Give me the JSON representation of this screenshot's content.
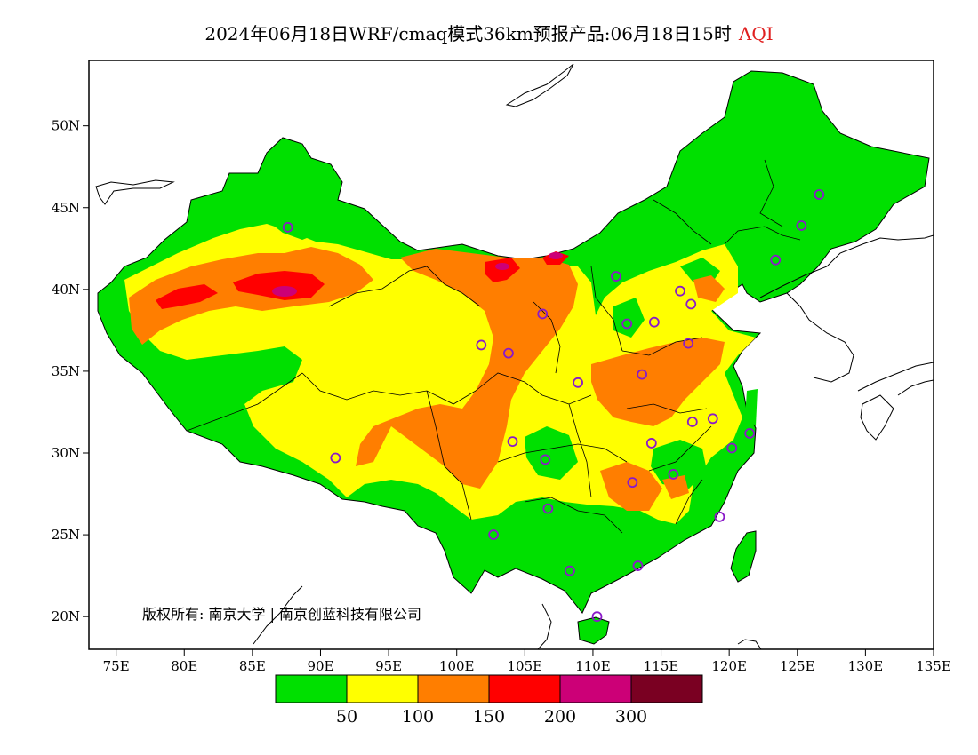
{
  "title": {
    "main": "2024年06月18日WRF/cmaq模式36km预报产品:06月18日15时",
    "variable": "AQI",
    "variable_color": "#e02020"
  },
  "map": {
    "lat_labels": [
      "50N",
      "45N",
      "40N",
      "35N",
      "30N",
      "25N",
      "20N"
    ],
    "lon_labels": [
      "75E",
      "80E",
      "85E",
      "90E",
      "95E",
      "100E",
      "105E",
      "110E",
      "115E",
      "120E",
      "125E",
      "130E",
      "135E"
    ],
    "lat_values": [
      50,
      45,
      40,
      35,
      30,
      25,
      20
    ],
    "lon_values": [
      75,
      80,
      85,
      90,
      95,
      100,
      105,
      110,
      115,
      120,
      125,
      130,
      135
    ],
    "lon_range": [
      73,
      135
    ],
    "lat_range": [
      18,
      54
    ],
    "copyright": "版权所有: 南京大学 | 南京创蓝科技有限公司",
    "station_marker_color": "#8a1ac8",
    "stations": [
      {
        "lon": 87.6,
        "lat": 43.8
      },
      {
        "lon": 91.1,
        "lat": 29.7
      },
      {
        "lon": 101.8,
        "lat": 36.6
      },
      {
        "lon": 103.8,
        "lat": 36.1
      },
      {
        "lon": 106.3,
        "lat": 38.5
      },
      {
        "lon": 104.1,
        "lat": 30.7
      },
      {
        "lon": 106.5,
        "lat": 29.6
      },
      {
        "lon": 106.7,
        "lat": 26.6
      },
      {
        "lon": 102.7,
        "lat": 25.0
      },
      {
        "lon": 108.3,
        "lat": 22.8
      },
      {
        "lon": 110.3,
        "lat": 20.0
      },
      {
        "lon": 113.3,
        "lat": 23.1
      },
      {
        "lon": 108.9,
        "lat": 34.3
      },
      {
        "lon": 113.6,
        "lat": 34.8
      },
      {
        "lon": 112.5,
        "lat": 37.9
      },
      {
        "lon": 114.5,
        "lat": 38.0
      },
      {
        "lon": 111.7,
        "lat": 40.8
      },
      {
        "lon": 116.4,
        "lat": 39.9
      },
      {
        "lon": 117.2,
        "lat": 39.1
      },
      {
        "lon": 117.0,
        "lat": 36.7
      },
      {
        "lon": 117.3,
        "lat": 31.9
      },
      {
        "lon": 118.8,
        "lat": 32.1
      },
      {
        "lon": 121.5,
        "lat": 31.2
      },
      {
        "lon": 120.2,
        "lat": 30.3
      },
      {
        "lon": 114.3,
        "lat": 30.6
      },
      {
        "lon": 112.9,
        "lat": 28.2
      },
      {
        "lon": 115.9,
        "lat": 28.7
      },
      {
        "lon": 119.3,
        "lat": 26.1
      },
      {
        "lon": 123.4,
        "lat": 41.8
      },
      {
        "lon": 125.3,
        "lat": 43.9
      },
      {
        "lon": 126.6,
        "lat": 45.8
      }
    ]
  },
  "legend": {
    "bins": [
      {
        "color": "#00e000"
      },
      {
        "color": "#ffff00"
      },
      {
        "color": "#ff7e00"
      },
      {
        "color": "#ff0000"
      },
      {
        "color": "#cc0077"
      },
      {
        "color": "#7a0022"
      }
    ],
    "labels": [
      "50",
      "100",
      "150",
      "200",
      "300"
    ]
  }
}
